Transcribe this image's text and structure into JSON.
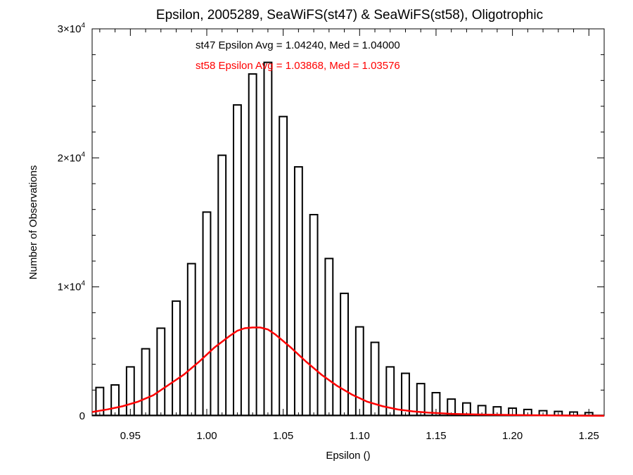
{
  "chart_data": {
    "type": "bar",
    "title": "Epsilon, 2005289, SeaWiFS(st47) & SeaWiFS(st58), Oligotrophic",
    "xlabel": "Epsilon ()",
    "ylabel": "Number of Observations",
    "xlim": [
      0.925,
      1.26
    ],
    "ylim": [
      0,
      30000
    ],
    "grid": false,
    "xticks": [
      0.95,
      1.0,
      1.05,
      1.1,
      1.15,
      1.2,
      1.25
    ],
    "xtick_labels": [
      "0.95",
      "1.00",
      "1.05",
      "1.10",
      "1.15",
      "1.20",
      "1.25"
    ],
    "yticks": [
      0,
      10000,
      20000,
      30000
    ],
    "ytick_labels": [
      {
        "base": "0",
        "exp": ""
      },
      {
        "base": "1×10",
        "exp": "4"
      },
      {
        "base": "2×10",
        "exp": "4"
      },
      {
        "base": "3×10",
        "exp": "4"
      }
    ],
    "annotations": [
      {
        "text": "st47 Epsilon Avg = 1.04240, Med = 1.04000",
        "color": "#000000"
      },
      {
        "text": "st58 Epsilon Avg = 1.03868, Med = 1.03576",
        "color": "#ff0000"
      }
    ],
    "series": [
      {
        "color": "#000000",
        "style": "histogram",
        "x": [
          0.93,
          0.94,
          0.95,
          0.96,
          0.97,
          0.98,
          0.99,
          1.0,
          1.01,
          1.02,
          1.03,
          1.04,
          1.05,
          1.06,
          1.07,
          1.08,
          1.09,
          1.1,
          1.11,
          1.12,
          1.13,
          1.14,
          1.15,
          1.16,
          1.17,
          1.18,
          1.19,
          1.2,
          1.21,
          1.22,
          1.23,
          1.24,
          1.25
        ],
        "values": [
          2200,
          2400,
          3800,
          5200,
          6800,
          8900,
          11800,
          15800,
          20200,
          24100,
          26500,
          27400,
          23200,
          19300,
          15600,
          12200,
          9500,
          6900,
          5700,
          3800,
          3300,
          2500,
          1800,
          1300,
          1000,
          800,
          700,
          600,
          500,
          400,
          350,
          300,
          250
        ]
      },
      {
        "color": "#ff0000",
        "style": "line",
        "x": [
          0.925,
          0.935,
          0.945,
          0.955,
          0.965,
          0.975,
          0.985,
          0.995,
          1.005,
          1.015,
          1.02,
          1.025,
          1.03,
          1.035,
          1.04,
          1.045,
          1.055,
          1.065,
          1.075,
          1.085,
          1.095,
          1.105,
          1.115,
          1.125,
          1.135,
          1.145,
          1.16,
          1.18,
          1.2,
          1.22,
          1.24,
          1.26
        ],
        "values": [
          300,
          500,
          750,
          1100,
          1600,
          2400,
          3200,
          4200,
          5300,
          6200,
          6600,
          6800,
          6850,
          6850,
          6700,
          6300,
          5300,
          4200,
          3200,
          2350,
          1650,
          1100,
          750,
          500,
          350,
          250,
          160,
          100,
          70,
          40,
          20,
          10
        ]
      }
    ]
  }
}
